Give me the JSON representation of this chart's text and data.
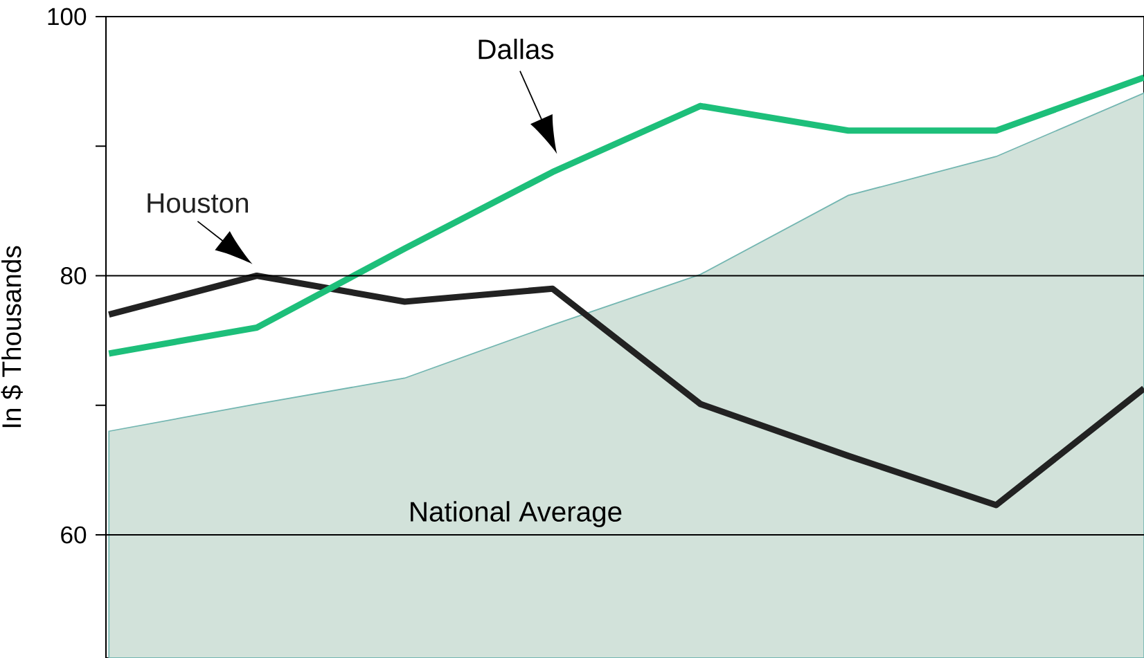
{
  "chart_data": {
    "type": "line",
    "ylabel": "In $ Thousands",
    "categories": [
      null,
      null,
      null,
      null,
      null,
      null,
      null,
      null
    ],
    "ylim": [
      50.5,
      100
    ],
    "yticks": [
      {
        "value": 60,
        "label": "60"
      },
      {
        "value": 70,
        "label": null
      },
      {
        "value": 80,
        "label": "80"
      },
      {
        "value": 90,
        "label": null
      },
      {
        "value": 100,
        "label": "100"
      }
    ],
    "ref_lines": [
      {
        "axis": "y",
        "value": 60,
        "color": "#000000"
      },
      {
        "axis": "y",
        "value": 80,
        "color": "#000000"
      }
    ],
    "series": [
      {
        "name": "National Average",
        "type": "area",
        "color": "#d2e2da",
        "values": [
          68.0,
          70.1,
          72.1,
          76.2,
          80.1,
          86.2,
          89.2,
          94.1
        ]
      },
      {
        "name": "Houston",
        "color": "#222222",
        "values": [
          77.0,
          80.0,
          78.0,
          79.0,
          70.1,
          66.1,
          62.3,
          71.3
        ]
      },
      {
        "name": "Dallas",
        "color": "#1dbf7a",
        "values": [
          74.0,
          76.0,
          82.1,
          88.0,
          93.1,
          91.2,
          91.2,
          95.3
        ]
      }
    ]
  }
}
